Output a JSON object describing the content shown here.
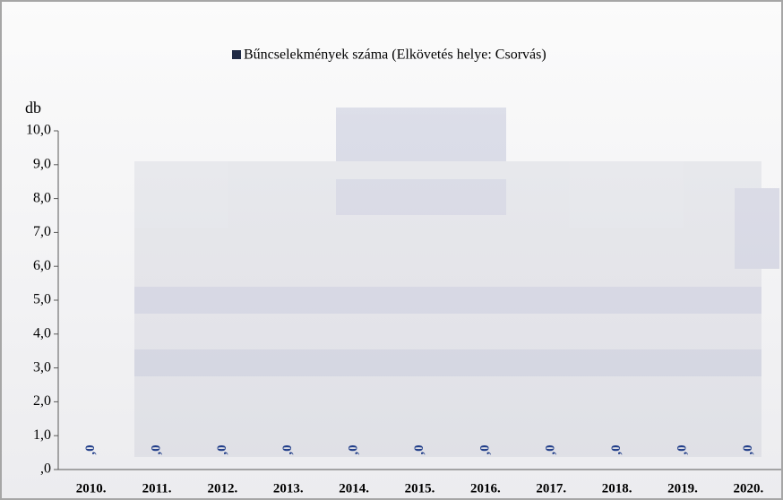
{
  "chart_data": {
    "type": "bar",
    "legend": "Bűncselekmények száma (Elkövetés helye: Csorvás)",
    "y_axis_label": "db",
    "color": "#1f2a44",
    "label_color": "#1f3c88",
    "categories": [
      "2010.",
      "2011.",
      "2012.",
      "2013.",
      "2014.",
      "2015.",
      "2016.",
      "2017.",
      "2018.",
      "2019.",
      "2020."
    ],
    "values": [
      0,
      0,
      0,
      0,
      0,
      0,
      0,
      0,
      0,
      0,
      0
    ],
    "value_labels": [
      ",0",
      ",0",
      ",0",
      ",0",
      ",0",
      ",0",
      ",0",
      ",0",
      ",0",
      ",0",
      ",0"
    ],
    "ylim": [
      0,
      10
    ],
    "yticks": [
      {
        "value": 0,
        "label": ",0"
      },
      {
        "value": 1,
        "label": "1,0"
      },
      {
        "value": 2,
        "label": "2,0"
      },
      {
        "value": 3,
        "label": "3,0"
      },
      {
        "value": 4,
        "label": "4,0"
      },
      {
        "value": 5,
        "label": "5,0"
      },
      {
        "value": 6,
        "label": "6,0"
      },
      {
        "value": 7,
        "label": "7,0"
      },
      {
        "value": 8,
        "label": "8,0"
      },
      {
        "value": 9,
        "label": "9,0"
      },
      {
        "value": 10,
        "label": "10,0"
      }
    ]
  }
}
